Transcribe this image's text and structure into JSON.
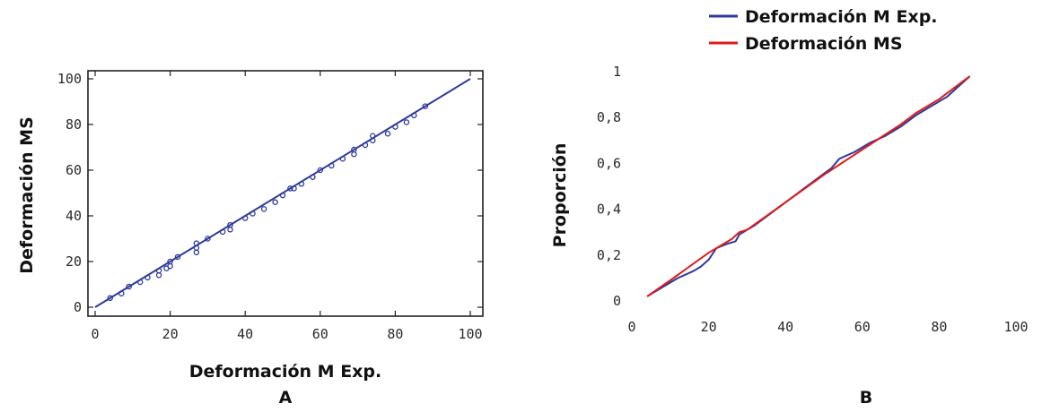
{
  "colors": {
    "blue": "#2e3a9c",
    "red": "#e01b1b",
    "axis": "#222222"
  },
  "chart_data": [
    {
      "type": "scatter",
      "panel_label": "A",
      "xlabel": "Deformación M Exp.",
      "ylabel": "Deformación MS",
      "xlim": [
        0,
        100
      ],
      "ylim": [
        0,
        100
      ],
      "x_ticks": [
        0,
        20,
        40,
        60,
        80,
        100
      ],
      "y_ticks": [
        0,
        20,
        40,
        60,
        80,
        100
      ],
      "x_tick_labels": [
        "0",
        "20",
        "40",
        "60",
        "80",
        "100"
      ],
      "y_tick_labels": [
        "0",
        "20",
        "40",
        "60",
        "80",
        "100"
      ],
      "fit_line": [
        [
          0,
          0
        ],
        [
          100,
          100
        ]
      ],
      "series": [
        {
          "points": [
            [
              4,
              4
            ],
            [
              7,
              6
            ],
            [
              9,
              9
            ],
            [
              12,
              11
            ],
            [
              14,
              13
            ],
            [
              17,
              14
            ],
            [
              17,
              16
            ],
            [
              19,
              17
            ],
            [
              20,
              18
            ],
            [
              20,
              20
            ],
            [
              22,
              22
            ],
            [
              27,
              26
            ],
            [
              27,
              28
            ],
            [
              27,
              24
            ],
            [
              30,
              30
            ],
            [
              34,
              33
            ],
            [
              36,
              34
            ],
            [
              36,
              36
            ],
            [
              40,
              39
            ],
            [
              42,
              41
            ],
            [
              45,
              43
            ],
            [
              48,
              46
            ],
            [
              50,
              49
            ],
            [
              52,
              52
            ],
            [
              53,
              52
            ],
            [
              55,
              54
            ],
            [
              58,
              57
            ],
            [
              60,
              60
            ],
            [
              63,
              62
            ],
            [
              66,
              65
            ],
            [
              69,
              67
            ],
            [
              69,
              69
            ],
            [
              72,
              71
            ],
            [
              74,
              73
            ],
            [
              74,
              75
            ],
            [
              78,
              76
            ],
            [
              80,
              79
            ],
            [
              83,
              81
            ],
            [
              85,
              84
            ],
            [
              88,
              88
            ]
          ]
        }
      ]
    },
    {
      "type": "line",
      "panel_label": "B",
      "ylabel": "Proporción",
      "xlim": [
        0,
        100
      ],
      "ylim": [
        0,
        1
      ],
      "x_ticks": [
        0,
        20,
        40,
        60,
        80,
        100
      ],
      "y_ticks": [
        0,
        0.2,
        0.4,
        0.6,
        0.8,
        1
      ],
      "x_tick_labels": [
        "0",
        "20",
        "40",
        "60",
        "80",
        "100"
      ],
      "y_tick_labels": [
        "0",
        "0,2",
        "0,4",
        "0,6",
        "0,8",
        "1"
      ],
      "legend_position": "top-center",
      "series": [
        {
          "name": "Deformación M Exp.",
          "color": "#2e3a9c",
          "x": [
            4,
            8,
            12,
            16,
            18,
            20,
            22,
            25,
            27,
            28,
            32,
            36,
            40,
            44,
            48,
            52,
            54,
            58,
            62,
            66,
            70,
            74,
            78,
            82,
            86,
            88
          ],
          "y": [
            0.02,
            0.06,
            0.1,
            0.13,
            0.15,
            0.18,
            0.23,
            0.25,
            0.26,
            0.29,
            0.33,
            0.38,
            0.43,
            0.48,
            0.53,
            0.58,
            0.62,
            0.65,
            0.69,
            0.72,
            0.76,
            0.81,
            0.85,
            0.89,
            0.95,
            0.98
          ]
        },
        {
          "name": "Deformación MS",
          "color": "#e01b1b",
          "x": [
            4,
            10,
            20,
            26,
            28,
            30,
            40,
            50,
            60,
            70,
            74,
            80,
            88
          ],
          "y": [
            0.02,
            0.09,
            0.21,
            0.27,
            0.3,
            0.31,
            0.43,
            0.55,
            0.66,
            0.77,
            0.82,
            0.88,
            0.98
          ]
        }
      ]
    }
  ]
}
